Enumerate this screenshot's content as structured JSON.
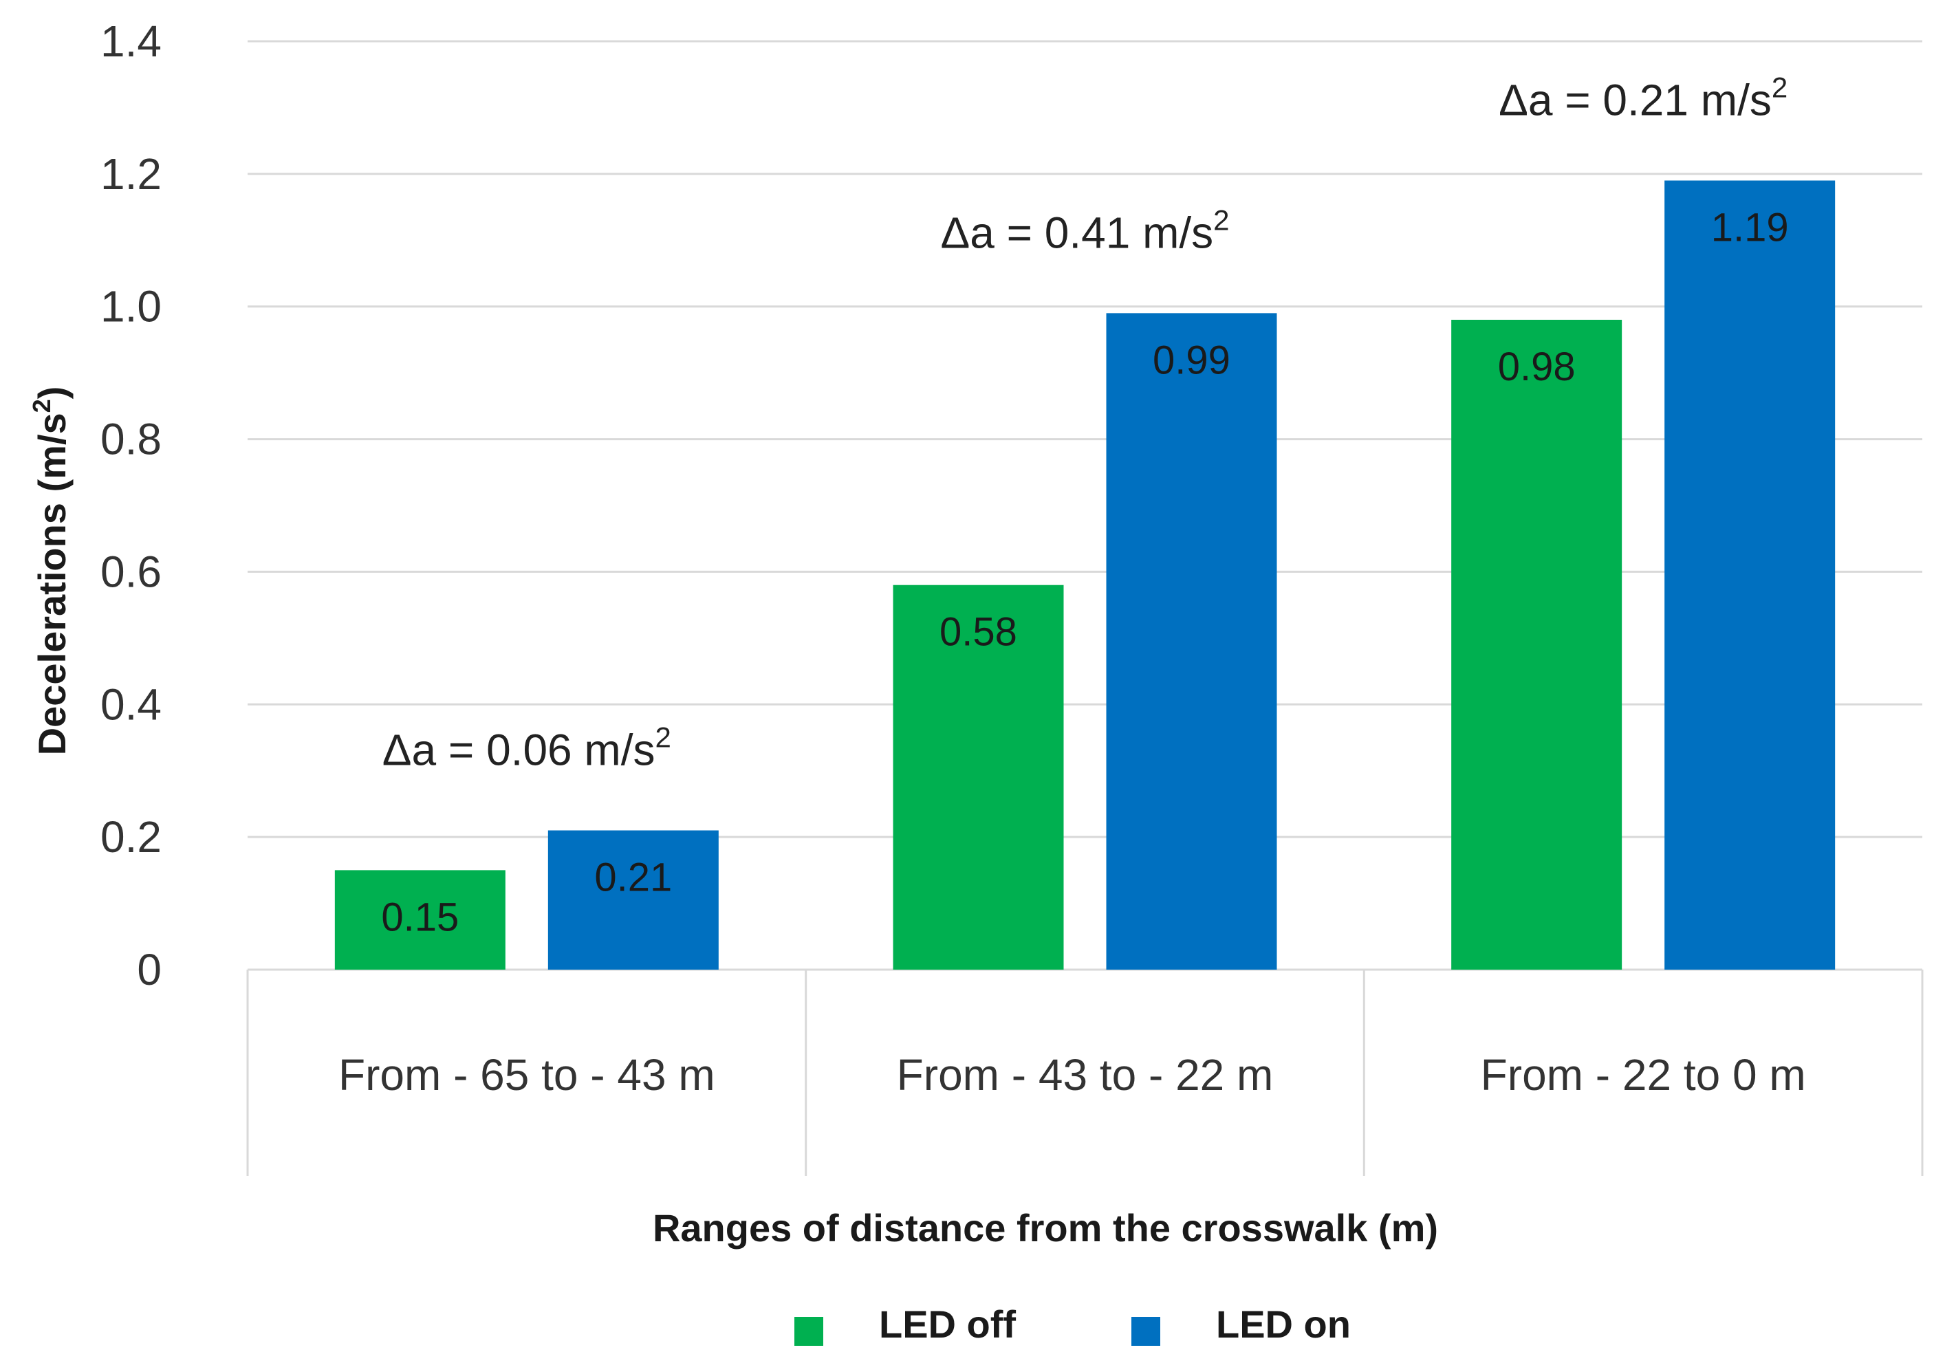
{
  "chart_data": {
    "type": "bar",
    "title": "",
    "xlabel": "Ranges of distance from the crosswalk (m)",
    "ylabel": "Decelerations (m/s²)",
    "ylabel_text": "Decelerations (m/s",
    "ylabel_sup": "2",
    "ylabel_close": ")",
    "ylim": [
      0,
      1.4
    ],
    "yticks": [
      0,
      0.2,
      0.4,
      0.6,
      0.8,
      1.0,
      1.2,
      1.4
    ],
    "ytick_labels": [
      "0",
      "0.2",
      "0.4",
      "0.6",
      "0.8",
      "1.0",
      "1.2",
      "1.4"
    ],
    "categories": [
      "From - 65 to - 43 m",
      "From - 43 to - 22 m",
      "From - 22 to 0 m"
    ],
    "series": [
      {
        "name": "LED off",
        "color": "#00b050",
        "values": [
          0.15,
          0.58,
          0.98
        ],
        "labels": [
          "0.15",
          "0.58",
          "0.98"
        ]
      },
      {
        "name": "LED on",
        "color": "#0070c0",
        "values": [
          0.21,
          0.99,
          1.19
        ],
        "labels": [
          "0.21",
          "0.99",
          "1.19"
        ]
      }
    ],
    "annotations": [
      {
        "text": "Δa = 0.06 m/s",
        "sup": "2",
        "category": 0
      },
      {
        "text": "Δa = 0.41 m/s",
        "sup": "2",
        "category": 1
      },
      {
        "text": "Δa = 0.21 m/s",
        "sup": "2",
        "category": 2
      }
    ],
    "legend": {
      "position": "bottom-center",
      "entries": [
        {
          "label": "LED off",
          "color": "#00b050"
        },
        {
          "label": "LED on",
          "color": "#0070c0"
        }
      ]
    },
    "grid": true
  }
}
